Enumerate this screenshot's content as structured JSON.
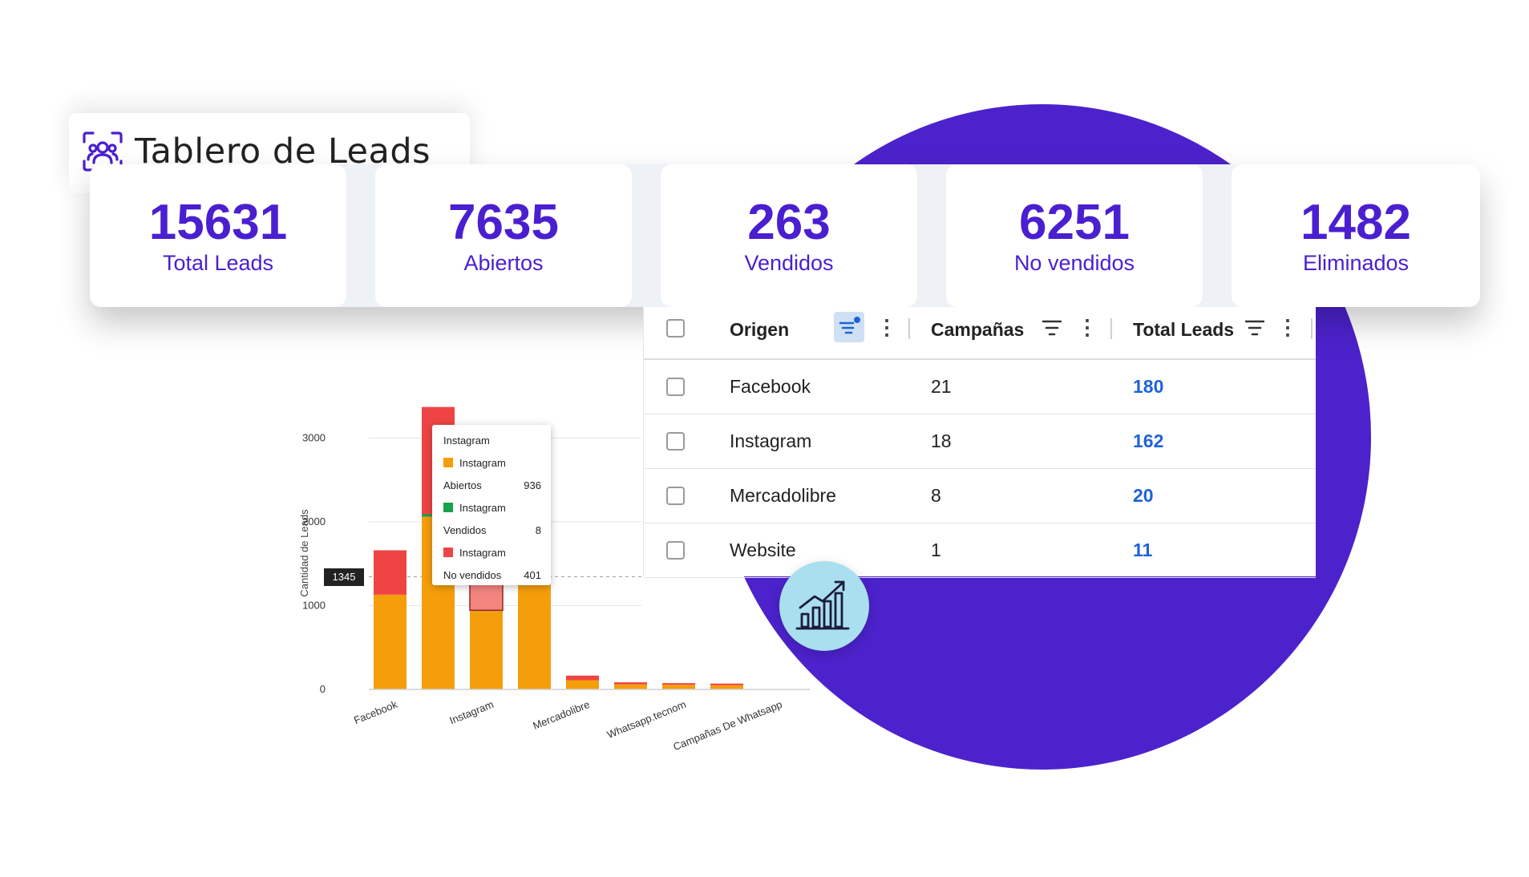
{
  "dashboard": {
    "title": "Tablero de Leads",
    "title_icon": "people-scan-icon"
  },
  "stats": [
    {
      "value": "15631",
      "label": "Total Leads"
    },
    {
      "value": "7635",
      "label": "Abiertos"
    },
    {
      "value": "263",
      "label": "Vendidos"
    },
    {
      "value": "6251",
      "label": "No vendidos"
    },
    {
      "value": "1482",
      "label": "Eliminados"
    }
  ],
  "table": {
    "headers": {
      "origin": "Origen",
      "campaigns": "Campañas",
      "total": "Total Leads"
    },
    "rows": [
      {
        "origin": "Facebook",
        "campaigns": "21",
        "total": "180"
      },
      {
        "origin": "Instagram",
        "campaigns": "18",
        "total": "162"
      },
      {
        "origin": "Mercadolibre",
        "campaigns": "8",
        "total": "20"
      },
      {
        "origin": "Website",
        "campaigns": "1",
        "total": "11"
      }
    ]
  },
  "colors": {
    "accent": "#4a1fd0",
    "blob": "#4c22cc",
    "abiertos": "#f59e0b",
    "vendidos": "#16a34a",
    "no_vendidos": "#ef4444",
    "link": "#1e63d6"
  },
  "chart_data": {
    "type": "bar",
    "stacked": true,
    "ylabel": "Cantidad de Leads",
    "ylim": [
      0,
      3300
    ],
    "yticks": [
      0,
      1000,
      2000,
      3000
    ],
    "categories": [
      "Facebook",
      "",
      "Instagram",
      "",
      "Mercadolibre",
      "",
      "Whatsapp.tecnom",
      "",
      "Campañas De Whatsapp"
    ],
    "series": [
      {
        "name": "Abiertos",
        "color": "#f59e0b",
        "values": [
          1130,
          2060,
          936,
          1380,
          110,
          60,
          55,
          50,
          0
        ]
      },
      {
        "name": "Vendidos",
        "color": "#16a34a",
        "values": [
          0,
          30,
          8,
          0,
          0,
          0,
          0,
          0,
          0
        ]
      },
      {
        "name": "No vendidos",
        "color": "#ef4444",
        "values": [
          530,
          1280,
          401,
          0,
          55,
          25,
          20,
          20,
          0
        ]
      }
    ],
    "crosshair": {
      "value": "1345"
    },
    "tooltip": {
      "title": "Instagram",
      "items": [
        {
          "series_label": "Instagram",
          "name": "Abiertos",
          "value": "936",
          "color": "#f59e0b"
        },
        {
          "series_label": "Instagram",
          "name": "Vendidos",
          "value": "8",
          "color": "#16a34a"
        },
        {
          "series_label": "Instagram",
          "name": "No vendidos",
          "value": "401",
          "color": "#ef4444"
        }
      ]
    }
  }
}
